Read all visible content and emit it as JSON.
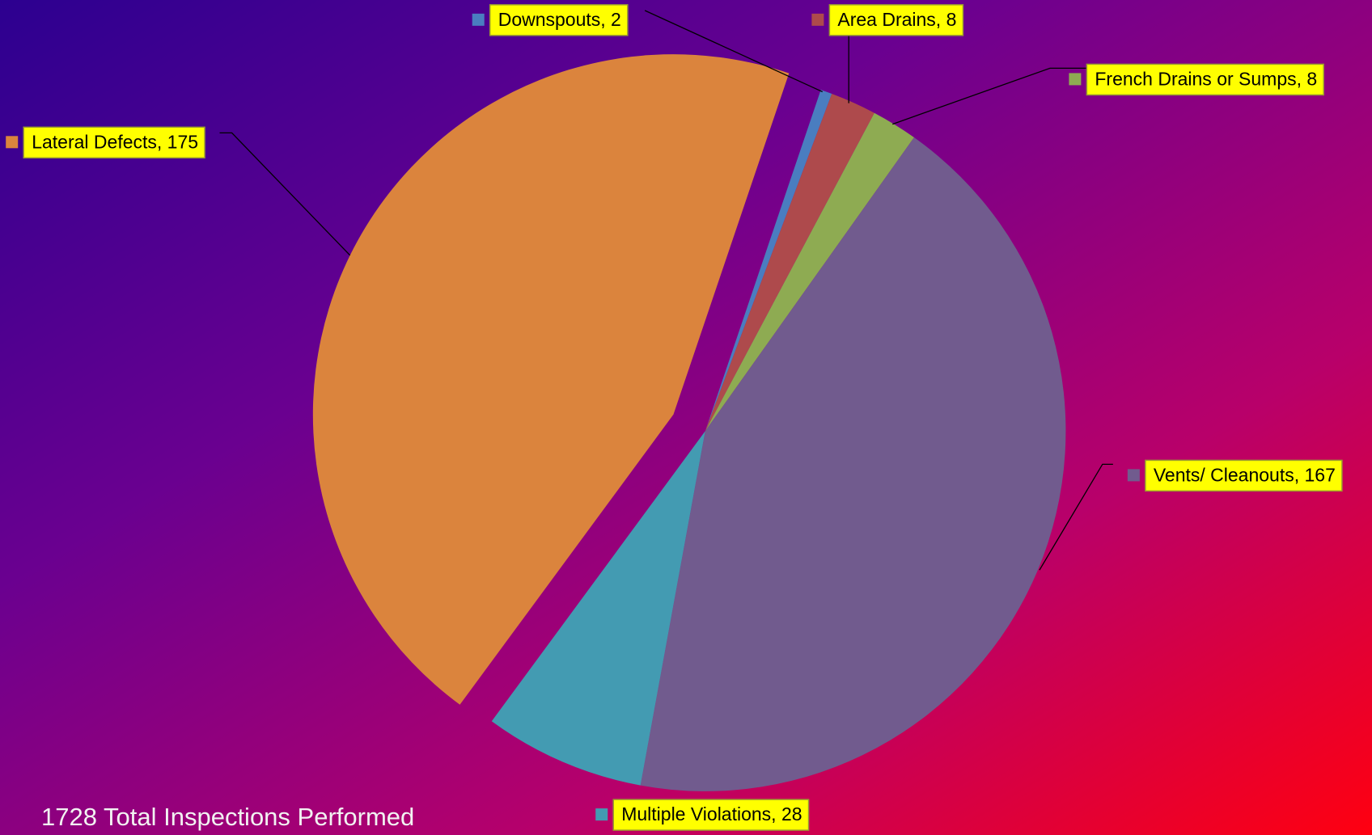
{
  "chart_data": {
    "type": "pie",
    "values": [
      2,
      8,
      8,
      167,
      28,
      175
    ],
    "value_labels": [
      "Downspouts, 2",
      "Area Drains, 8",
      "French Drains or Sumps, 8",
      "Vents/ Cleanouts, 167",
      "Multiple Violations, 28",
      "Lateral Defects, 175"
    ],
    "colors": [
      "#4a7dc0",
      "#ae4a4c",
      "#8eab52",
      "#715b8e",
      "#439bb2",
      "#db843d"
    ],
    "annotation": "1728 Total Inspections Performed"
  }
}
